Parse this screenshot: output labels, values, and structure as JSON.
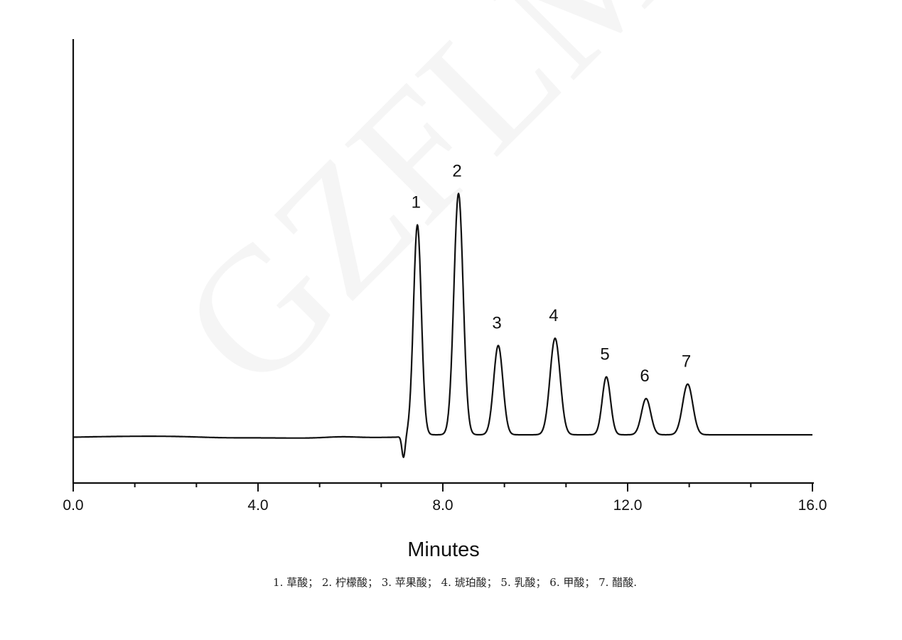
{
  "chart_data": {
    "type": "line",
    "title": "",
    "xlabel": "Minutes",
    "ylabel": "",
    "xlim": [
      0,
      16
    ],
    "ylim": [
      -20,
      164
    ],
    "x_ticks": [
      "0.0",
      "4.0",
      "8.0",
      "12.0",
      "16.0"
    ],
    "x_tick_values": [
      0,
      4,
      8,
      12,
      16
    ],
    "minor_tick_step": 1.3333,
    "y_ticks": [],
    "grid": false,
    "legend": "none",
    "line_color": "#111111",
    "baseline_dip": {
      "x": 7.15,
      "y": -9
    },
    "peaks": [
      {
        "label": "1",
        "x": 7.45,
        "y": 87,
        "width": 0.085
      },
      {
        "label": "2",
        "x": 8.34,
        "y": 100,
        "width": 0.1
      },
      {
        "label": "3",
        "x": 9.2,
        "y": 37,
        "width": 0.1
      },
      {
        "label": "4",
        "x": 10.43,
        "y": 40,
        "width": 0.11
      },
      {
        "label": "5",
        "x": 11.54,
        "y": 24,
        "width": 0.09
      },
      {
        "label": "6",
        "x": 12.4,
        "y": 15,
        "width": 0.1
      },
      {
        "label": "7",
        "x": 13.3,
        "y": 21,
        "width": 0.11
      }
    ],
    "caption": "1. 草酸； 2. 柠檬酸； 3. 苹果酸； 4. 琥珀酸； 5. 乳酸； 6. 甲酸； 7. 醋酸."
  },
  "watermark": "GZFLM"
}
